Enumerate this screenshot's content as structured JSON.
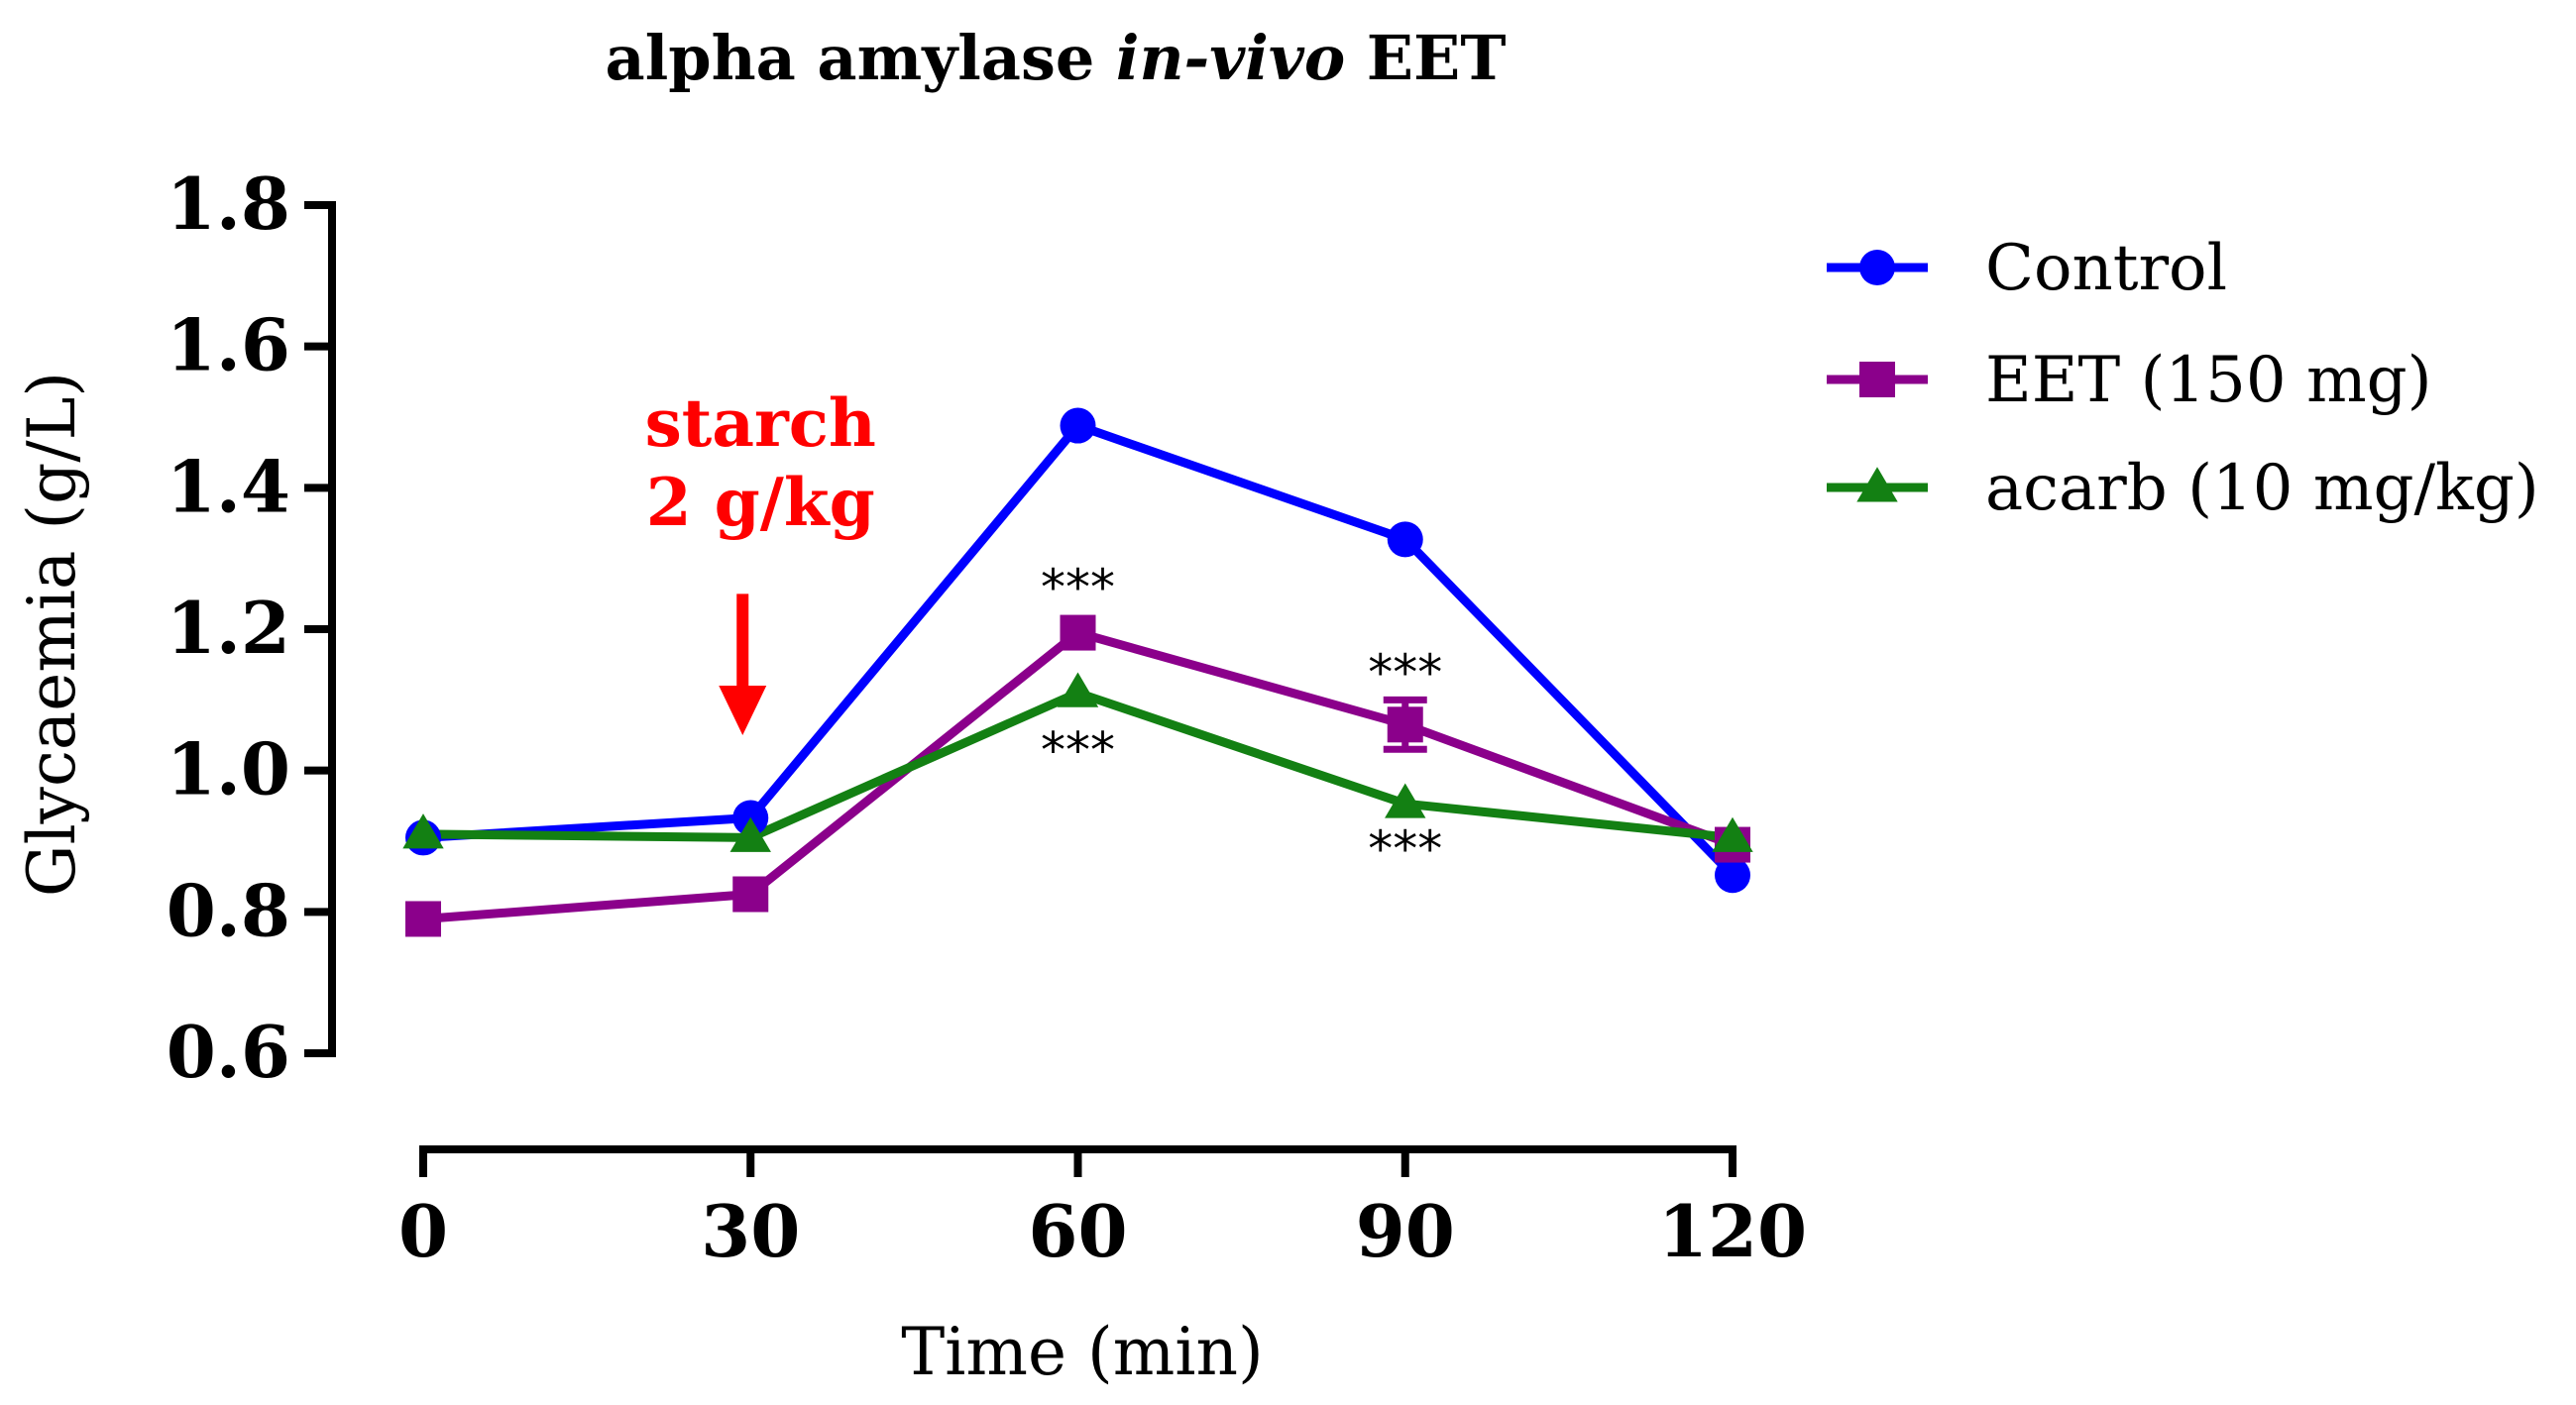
{
  "chart_data": {
    "type": "line",
    "title": {
      "prefix": "alpha amylase ",
      "italic": "in-vivo",
      "suffix": " EET"
    },
    "xlabel": "Time (min)",
    "ylabel": "Glycaemia (g/L)",
    "x": [
      0,
      30,
      60,
      90,
      120
    ],
    "xticks": [
      "0",
      "30",
      "60",
      "90",
      "120"
    ],
    "xlim": [
      0,
      120
    ],
    "ylim": [
      0.6,
      1.8
    ],
    "yticks": [
      "0.6",
      "0.8",
      "1.0",
      "1.2",
      "1.4",
      "1.6",
      "1.8"
    ],
    "grid": false,
    "legend_position": "top-right",
    "series": [
      {
        "name": "Control",
        "color": "#0000ff",
        "marker": "circle",
        "values": [
          0.905,
          0.933,
          1.488,
          1.327,
          0.852
        ]
      },
      {
        "name": "EET (150 mg)",
        "color": "#8b008b",
        "marker": "square",
        "values": [
          0.79,
          0.825,
          1.195,
          1.065,
          0.895
        ],
        "error": [
          0,
          0,
          0,
          0.035,
          0
        ]
      },
      {
        "name": "acarb (10 mg/kg)",
        "color": "#138013",
        "marker": "triangle",
        "values": [
          0.91,
          0.905,
          1.11,
          0.953,
          0.905
        ]
      }
    ],
    "annotations": [
      {
        "text": "***",
        "x": 60,
        "y": 1.26
      },
      {
        "text": "***",
        "x": 60,
        "y": 1.03
      },
      {
        "text": "***",
        "x": 90,
        "y": 1.14
      },
      {
        "text": "***",
        "x": 90,
        "y": 0.89
      }
    ],
    "callout": {
      "line1": "starch",
      "line2": "2 g/kg",
      "color": "#ff0000",
      "arrow_x": 30,
      "arrow_y_from": 1.25,
      "arrow_y_to": 1.05
    }
  }
}
